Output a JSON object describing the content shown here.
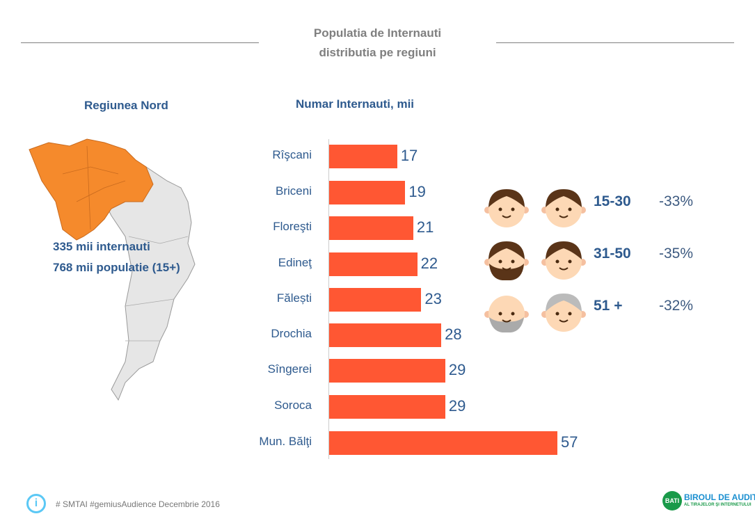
{
  "header": {
    "title_line1": "Populatia de Internauti",
    "title_line2": "distributia pe regiuni"
  },
  "region": {
    "title": "Regiunea Nord",
    "internauti": "335 mii internauti",
    "populatie": "768 mii populatie (15+)"
  },
  "chart_data": {
    "type": "bar",
    "orientation": "horizontal",
    "title": "Numar Internauti, mii",
    "categories": [
      "Rîşcani",
      "Briceni",
      "Floreşti",
      "Edineţ",
      "Fălești",
      "Drochia",
      "Sîngerei",
      "Soroca",
      "Mun. Bălţi"
    ],
    "values": [
      17,
      19,
      21,
      22,
      23,
      28,
      29,
      29,
      57
    ],
    "xlim": [
      0,
      57
    ]
  },
  "age_groups": [
    {
      "label": "15-30",
      "change": "-33%"
    },
    {
      "label": "31-50",
      "change": "-35%"
    },
    {
      "label": "51 +",
      "change": "-32%"
    }
  ],
  "footer": {
    "source": "# SMTAI #gemiusAudience Decembrie 2016",
    "logo_line1": "BIROUL DE AUDIT",
    "logo_line2": "AL TIRAJELOR ŞI INTERNETULUI",
    "logo_badge": "BATI"
  },
  "colors": {
    "bar": "#ff5733",
    "text": "#2e5a8e",
    "map_region": "#f58a2c",
    "map_other": "#e6e6e6"
  }
}
